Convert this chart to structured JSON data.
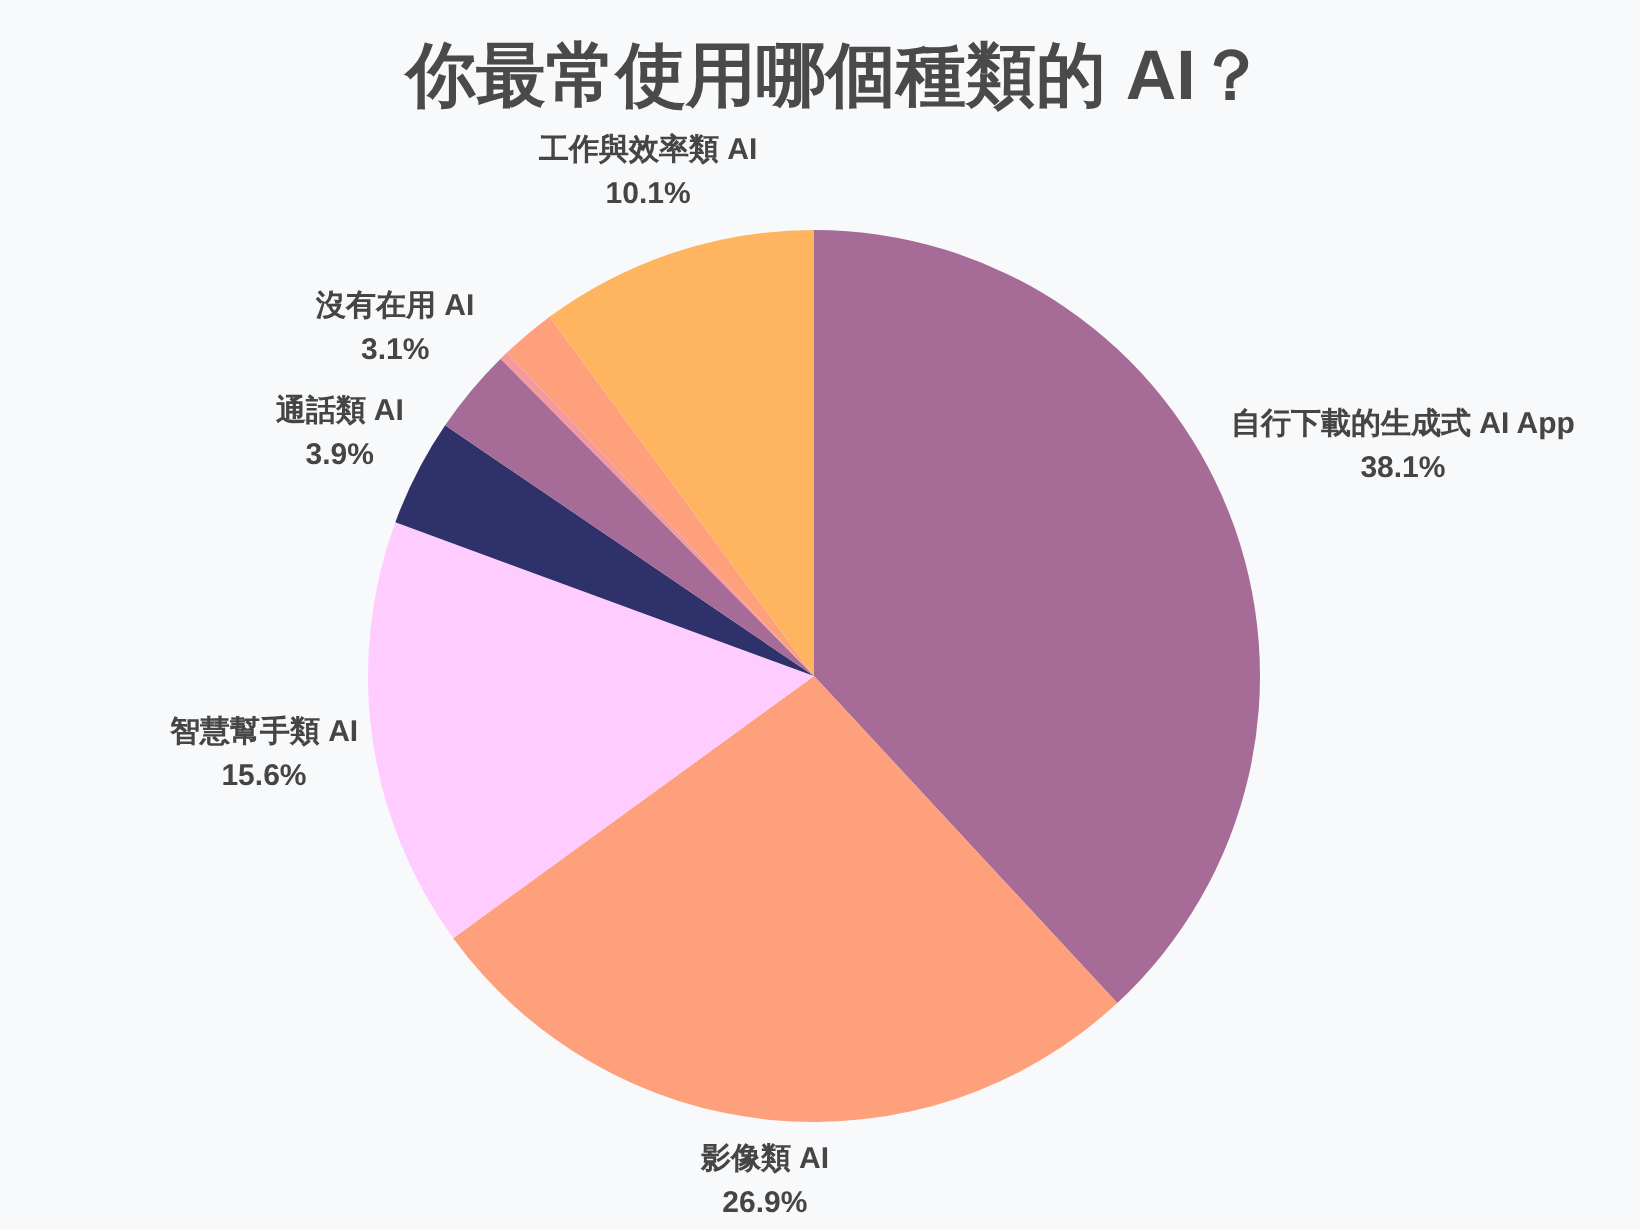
{
  "chart_data": {
    "type": "pie",
    "title": "你最常使用哪個種類的 AI？",
    "categories": [
      "自行下載的生成式 AI App",
      "影像類 AI",
      "智慧幫手類 AI",
      "通話類 AI",
      "沒有在用 AI",
      null,
      null,
      "工作與效率類 AI"
    ],
    "values": [
      38.1,
      26.9,
      15.6,
      3.9,
      3.1,
      0.3,
      2.0,
      10.1
    ],
    "value_labels": [
      "38.1%",
      "26.9%",
      "15.6%",
      "3.9%",
      "3.1%",
      null,
      null,
      "10.1%"
    ],
    "colors": [
      "#a66b96",
      "#ffa07d",
      "#ffccff",
      "#2f316a",
      "#a66b96",
      "#f4999e",
      "#ffa07d",
      "#ffb45f"
    ]
  }
}
